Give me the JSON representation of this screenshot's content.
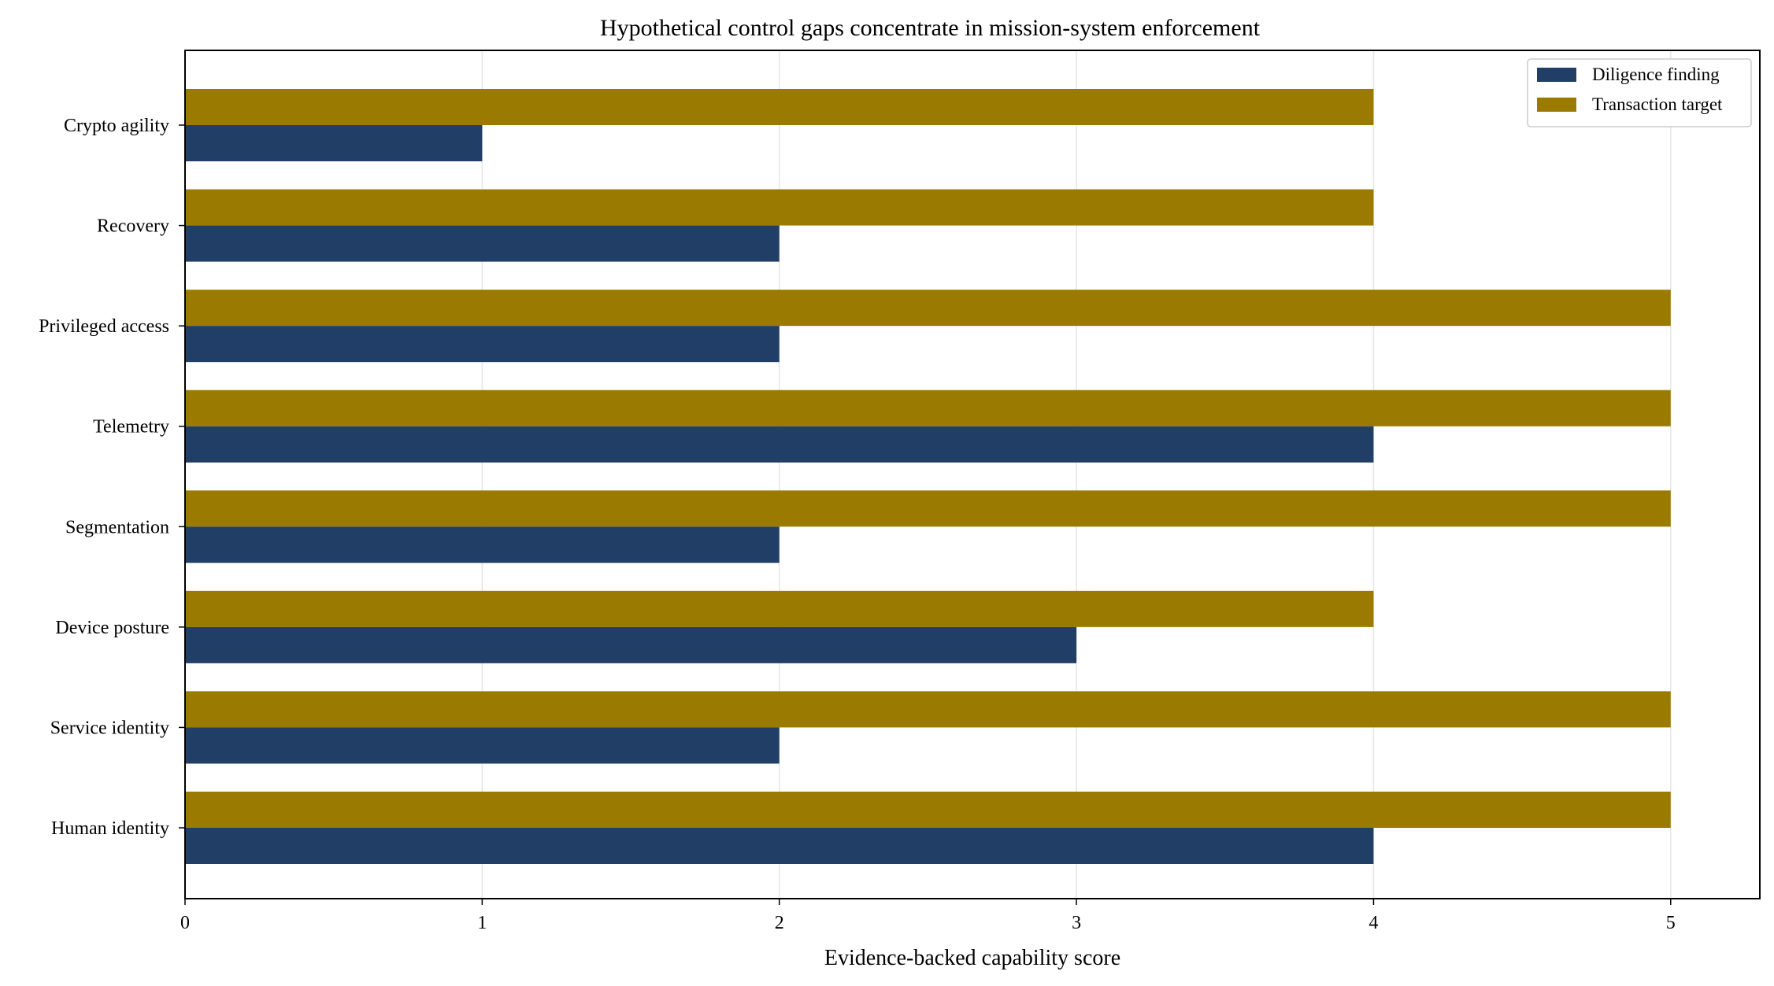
{
  "chart_data": {
    "type": "bar",
    "orientation": "horizontal",
    "title": "Hypothetical control gaps concentrate in mission-system enforcement",
    "xlabel": "Evidence-backed capability score",
    "ylabel": "",
    "xlim": [
      0,
      5.3
    ],
    "xticks": [
      0,
      1,
      2,
      3,
      4,
      5
    ],
    "grid": "x",
    "legend_position": "top-right",
    "categories": [
      "Human identity",
      "Service identity",
      "Device posture",
      "Segmentation",
      "Telemetry",
      "Privileged access",
      "Recovery",
      "Crypto agility"
    ],
    "series": [
      {
        "name": "Diligence finding",
        "color": "#213f66",
        "values": [
          4,
          2,
          3,
          2,
          4,
          2,
          2,
          1
        ]
      },
      {
        "name": "Transaction target",
        "color": "#9a7b00",
        "values": [
          5,
          5,
          4,
          5,
          5,
          5,
          4,
          4
        ]
      }
    ]
  }
}
